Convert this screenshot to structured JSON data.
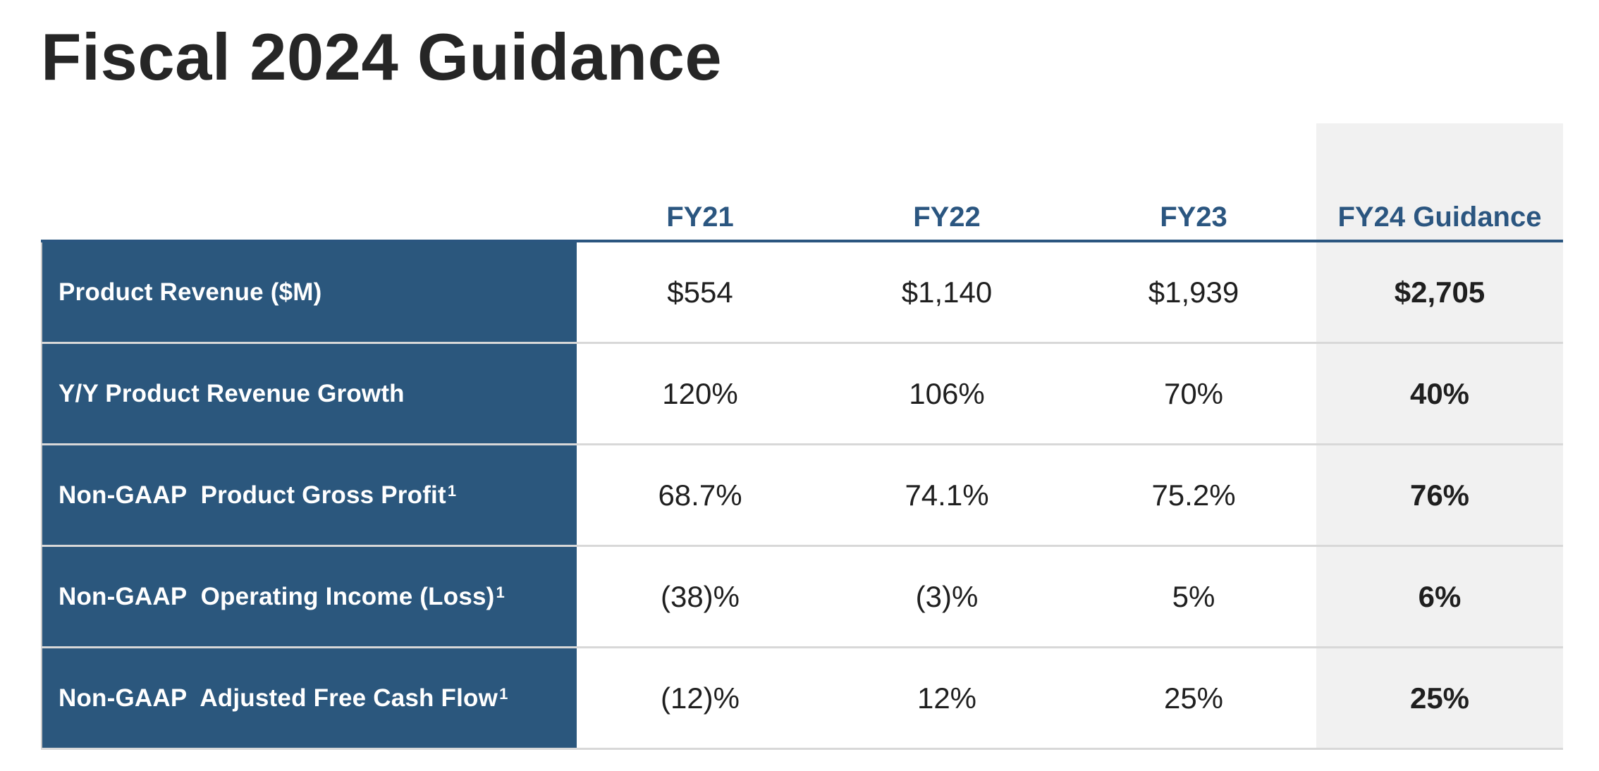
{
  "title": "Fiscal 2024 Guidance",
  "colors": {
    "header_text": "#2b5680",
    "label_background": "#2b577d",
    "guidance_column_background": "#f1f1f1"
  },
  "columns": [
    "FY21",
    "FY22",
    "FY23",
    "FY24 Guidance"
  ],
  "rows": [
    {
      "label": "Product Revenue ($M)",
      "footnote": "",
      "values": [
        "$554",
        "$1,140",
        "$1,939",
        "$2,705"
      ]
    },
    {
      "label": "Y/Y Product Revenue Growth",
      "footnote": "",
      "values": [
        "120%",
        "106%",
        "70%",
        "40%"
      ]
    },
    {
      "label": "Non-GAAP  Product Gross Profit",
      "footnote": "1",
      "values": [
        "68.7%",
        "74.1%",
        "75.2%",
        "76%"
      ]
    },
    {
      "label": "Non-GAAP  Operating Income (Loss)",
      "footnote": "1",
      "values": [
        "(38)%",
        "(3)%",
        "5%",
        "6%"
      ]
    },
    {
      "label": "Non-GAAP  Adjusted Free Cash Flow",
      "footnote": "1",
      "values": [
        "(12)%",
        "12%",
        "25%",
        "25%"
      ]
    }
  ]
}
